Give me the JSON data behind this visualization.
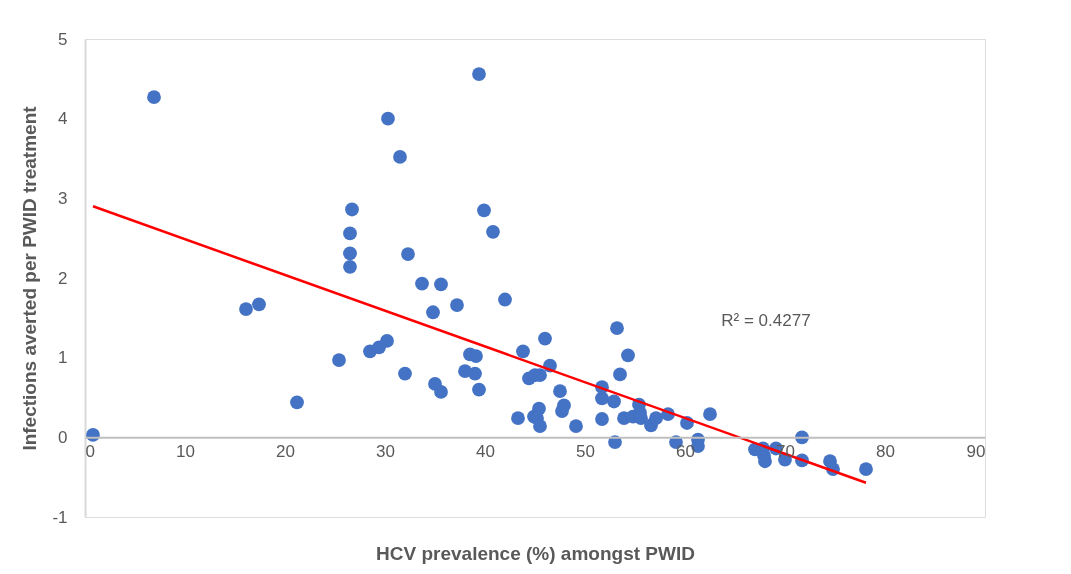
{
  "chart_data": {
    "type": "scatter",
    "xlabel": "HCV prevalence (%) amongst PWID",
    "ylabel": "Infections averted per PWID treatment",
    "xlim": [
      0,
      90
    ],
    "xticks": [
      0,
      10,
      20,
      30,
      40,
      50,
      60,
      70,
      80,
      90
    ],
    "ylim": [
      -1,
      5
    ],
    "yticks": [
      -1,
      0,
      1,
      2,
      3,
      4,
      5
    ],
    "grid": false,
    "marker": "circle",
    "annotations": [
      "R² = 0.4277"
    ],
    "series": [
      {
        "color": "#4472c4",
        "x": [
          0.8,
          6.9,
          16.1,
          17.4,
          21.2,
          25.4,
          26.5,
          26.5,
          26.5,
          26.7,
          28.5,
          29.4,
          30.2,
          30.3,
          31.5,
          32.0,
          32.3,
          33.7,
          34.8,
          35.0,
          35.6,
          35.6,
          37.2,
          38.0,
          38.5,
          39.1,
          39.0,
          39.4,
          39.4,
          39.9,
          40.8,
          42.0,
          43.3,
          43.8,
          44.4,
          45.0,
          45.5,
          44.9,
          45.4,
          45.2,
          45.5,
          46.0,
          46.5,
          49.1,
          47.5,
          47.9,
          47.7,
          51.7,
          51.7,
          51.7,
          52.9,
          53.0,
          53.2,
          53.5,
          53.9,
          54.3,
          54.8,
          55.4,
          55.5,
          55.6,
          56.6,
          57.1,
          58.3,
          59.1,
          60.2,
          61.3,
          61.3,
          62.5,
          67.0,
          67.8,
          68.0,
          67.9,
          69.1,
          70.0,
          71.7,
          71.7,
          74.5,
          74.8,
          78.1
        ],
        "values": [
          0.03,
          4.27,
          1.61,
          1.67,
          0.44,
          0.97,
          2.14,
          2.31,
          2.56,
          2.86,
          1.08,
          1.13,
          1.21,
          4.0,
          3.52,
          0.8,
          2.3,
          1.93,
          1.57,
          0.67,
          0.57,
          1.92,
          1.66,
          0.83,
          1.04,
          1.02,
          0.8,
          0.6,
          4.56,
          2.85,
          2.58,
          1.73,
          0.24,
          1.08,
          0.74,
          0.78,
          0.78,
          0.26,
          0.36,
          0.24,
          0.14,
          1.24,
          0.9,
          0.14,
          0.58,
          0.4,
          0.33,
          0.63,
          0.49,
          0.23,
          0.45,
          -0.06,
          1.37,
          0.79,
          0.24,
          1.03,
          0.26,
          0.41,
          0.31,
          0.24,
          0.15,
          0.24,
          0.29,
          -0.06,
          0.18,
          -0.03,
          -0.11,
          0.29,
          -0.15,
          -0.14,
          -0.3,
          -0.23,
          -0.14,
          -0.28,
          0.0,
          -0.29,
          -0.3,
          -0.4,
          -0.4
        ]
      },
      {
        "type": "line",
        "marker": "none",
        "line_style": "solid",
        "color": "#ff0000",
        "x": [
          0.8,
          78.1
        ],
        "values": [
          2.9,
          -0.57
        ]
      }
    ]
  }
}
